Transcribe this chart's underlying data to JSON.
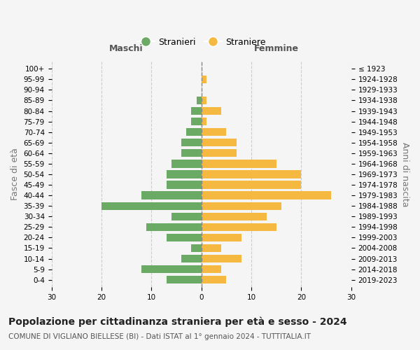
{
  "age_groups": [
    "0-4",
    "5-9",
    "10-14",
    "15-19",
    "20-24",
    "25-29",
    "30-34",
    "35-39",
    "40-44",
    "45-49",
    "50-54",
    "55-59",
    "60-64",
    "65-69",
    "70-74",
    "75-79",
    "80-84",
    "85-89",
    "90-94",
    "95-99",
    "100+"
  ],
  "birth_years": [
    "2019-2023",
    "2014-2018",
    "2009-2013",
    "2004-2008",
    "1999-2003",
    "1994-1998",
    "1989-1993",
    "1984-1988",
    "1979-1983",
    "1974-1978",
    "1969-1973",
    "1964-1968",
    "1959-1963",
    "1954-1958",
    "1949-1953",
    "1944-1948",
    "1939-1943",
    "1934-1938",
    "1929-1933",
    "1924-1928",
    "≤ 1923"
  ],
  "males": [
    7,
    12,
    4,
    2,
    7,
    11,
    6,
    20,
    12,
    7,
    7,
    6,
    4,
    4,
    3,
    2,
    2,
    1,
    0,
    0,
    0
  ],
  "females": [
    5,
    4,
    8,
    4,
    8,
    15,
    13,
    16,
    26,
    20,
    20,
    15,
    7,
    7,
    5,
    1,
    4,
    1,
    0,
    1,
    0
  ],
  "male_color": "#6aaa64",
  "female_color": "#f5b942",
  "background_color": "#f5f5f5",
  "grid_color": "#cccccc",
  "title": "Popolazione per cittadinanza straniera per età e sesso - 2024",
  "subtitle": "COMUNE DI VIGLIANO BIELLESE (BI) - Dati ISTAT al 1° gennaio 2024 - TUTTITALIA.IT",
  "xlabel_left": "Maschi",
  "xlabel_right": "Femmine",
  "ylabel_left": "Fasce di età",
  "ylabel_right": "Anni di nascita",
  "legend_males": "Stranieri",
  "legend_females": "Straniere",
  "xlim": 30,
  "title_fontsize": 10,
  "subtitle_fontsize": 7.5,
  "tick_fontsize": 7.5,
  "label_fontsize": 9
}
